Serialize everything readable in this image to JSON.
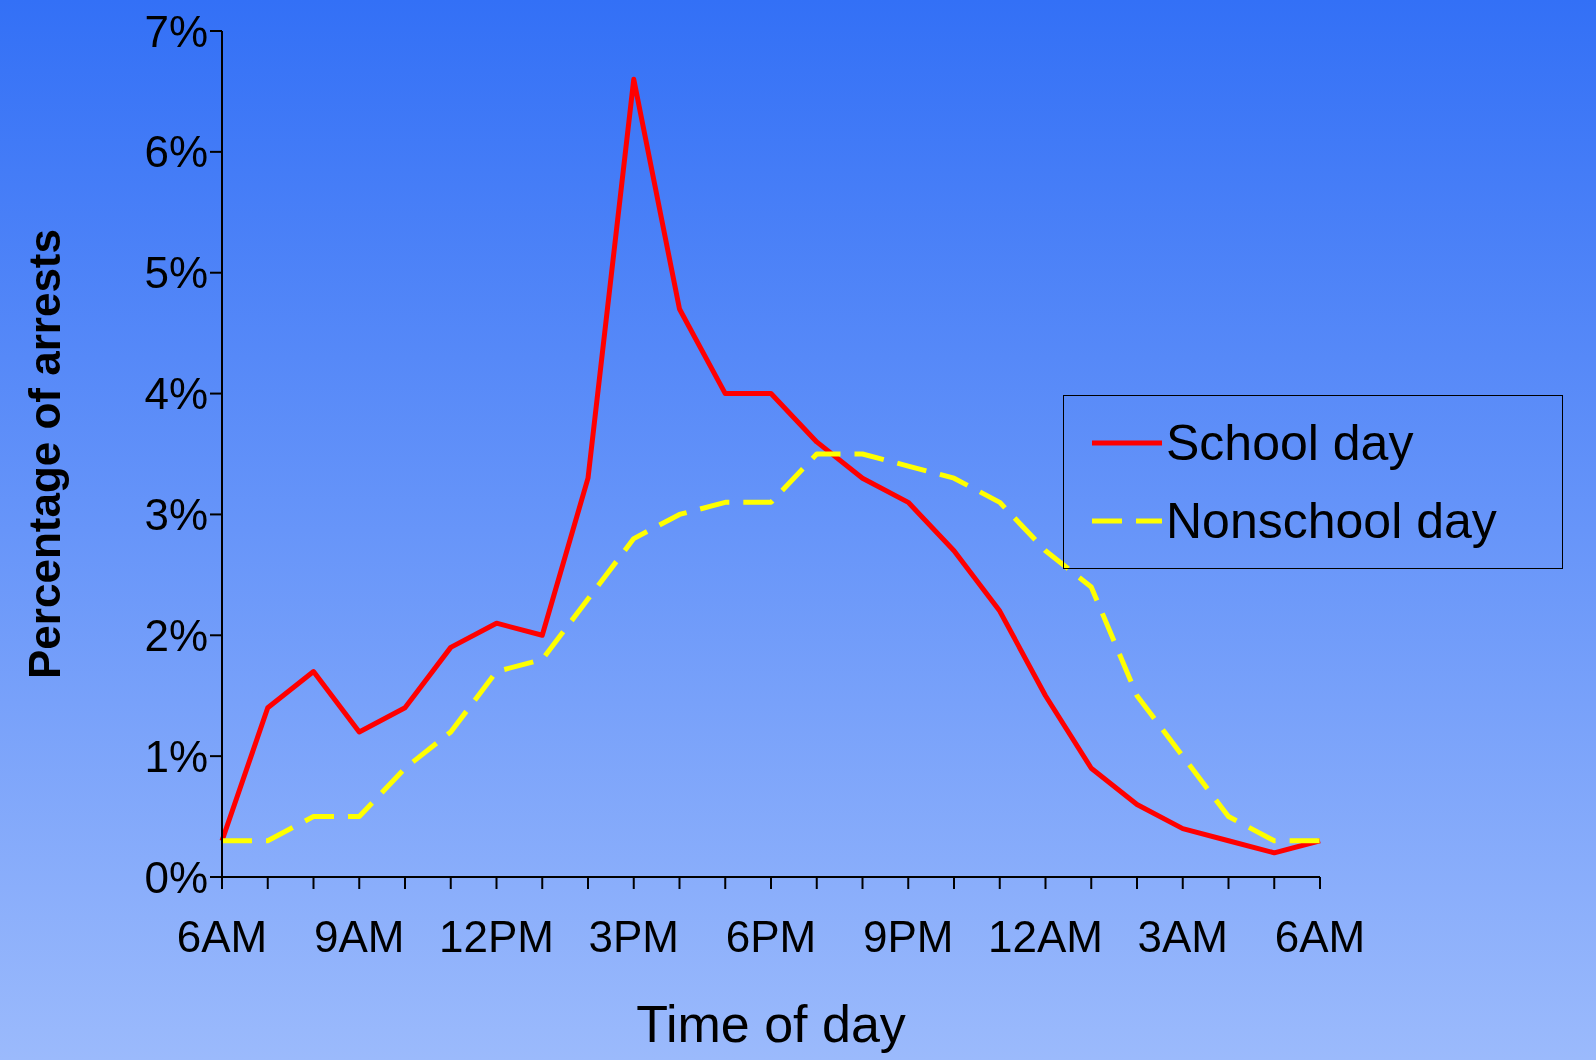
{
  "chart_data": {
    "type": "line",
    "xlabel": "Time of day",
    "ylabel": "Percentage of arrests",
    "categories": [
      "6AM",
      null,
      null,
      "9AM",
      null,
      null,
      "12PM",
      null,
      null,
      "3PM",
      null,
      null,
      "6PM",
      null,
      null,
      "9PM",
      null,
      null,
      "12AM",
      null,
      null,
      "3AM",
      null,
      null,
      "6AM"
    ],
    "series": [
      {
        "name": "School day",
        "color": "#ff0000",
        "line_style": "solid",
        "values": [
          0.3,
          1.4,
          1.7,
          1.2,
          1.4,
          1.9,
          2.1,
          2.0,
          3.3,
          6.6,
          4.7,
          4.0,
          4.0,
          3.6,
          3.3,
          3.1,
          2.7,
          2.2,
          1.5,
          0.9,
          0.6,
          0.4,
          0.3,
          0.2,
          0.3
        ]
      },
      {
        "name": "Nonschool day",
        "color": "#ffff00",
        "line_style": "dashed",
        "values": [
          0.3,
          0.3,
          0.5,
          0.5,
          0.9,
          1.2,
          1.7,
          1.8,
          2.3,
          2.8,
          3.0,
          3.1,
          3.1,
          3.5,
          3.5,
          3.4,
          3.3,
          3.1,
          2.7,
          2.4,
          1.5,
          1.0,
          0.5,
          0.3,
          0.3
        ]
      }
    ],
    "ylim": [
      0,
      7
    ],
    "yticks": [
      {
        "value": 0,
        "label": "0%"
      },
      {
        "value": 1,
        "label": "1%"
      },
      {
        "value": 2,
        "label": "2%"
      },
      {
        "value": 3,
        "label": "3%"
      },
      {
        "value": 4,
        "label": "4%"
      },
      {
        "value": 5,
        "label": "5%"
      },
      {
        "value": 6,
        "label": "6%"
      },
      {
        "value": 7,
        "label": "7%"
      }
    ],
    "grid": false,
    "legend": "right",
    "marker": "none"
  }
}
